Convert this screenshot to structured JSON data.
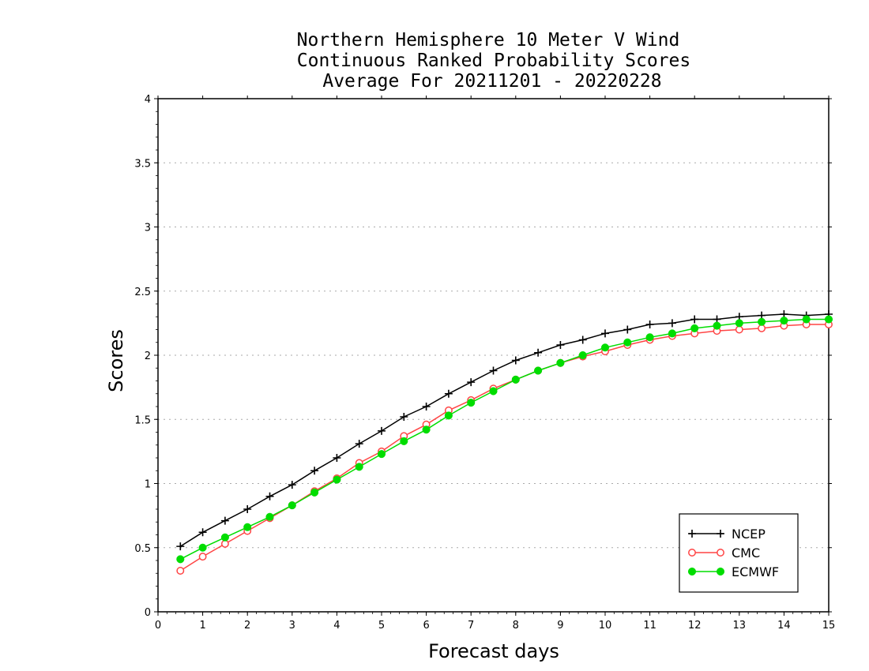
{
  "chart_data": {
    "type": "line",
    "title": [
      "Northern Hemisphere 10 Meter V Wind",
      "Continuous Ranked Probability Scores",
      "Average For 20211201 - 20220228"
    ],
    "xlabel": "Forecast days",
    "ylabel": "Scores",
    "xlim": [
      0,
      15
    ],
    "ylim": [
      0,
      4
    ],
    "xticks": [
      "0",
      "1",
      "2",
      "3",
      "4",
      "5",
      "6",
      "7",
      "8",
      "9",
      "10",
      "11",
      "12",
      "13",
      "14",
      "15"
    ],
    "yticks": [
      "0",
      "0.5",
      "1",
      "1.5",
      "2",
      "2.5",
      "3",
      "3.5",
      "4"
    ],
    "grid": "horizontal-dotted",
    "legend_position": "bottom-right",
    "x": [
      0.5,
      1,
      1.5,
      2,
      2.5,
      3,
      3.5,
      4,
      4.5,
      5,
      5.5,
      6,
      6.5,
      7,
      7.5,
      8,
      8.5,
      9,
      9.5,
      10,
      10.5,
      11,
      11.5,
      12,
      12.5,
      13,
      13.5,
      14,
      14.5,
      15
    ],
    "series": [
      {
        "name": "NCEP",
        "color": "#000000",
        "marker": "plus",
        "values": [
          0.51,
          0.62,
          0.71,
          0.8,
          0.9,
          0.99,
          1.1,
          1.2,
          1.31,
          1.41,
          1.52,
          1.6,
          1.7,
          1.79,
          1.88,
          1.96,
          2.02,
          2.08,
          2.12,
          2.17,
          2.2,
          2.24,
          2.25,
          2.28,
          2.28,
          2.3,
          2.31,
          2.32,
          2.31,
          2.32
        ]
      },
      {
        "name": "CMC",
        "color": "#ff4444",
        "marker": "open-circle",
        "values": [
          0.32,
          0.43,
          0.53,
          0.63,
          0.73,
          0.83,
          0.94,
          1.04,
          1.16,
          1.25,
          1.37,
          1.46,
          1.57,
          1.65,
          1.74,
          1.81,
          1.88,
          1.94,
          1.99,
          2.03,
          2.08,
          2.12,
          2.15,
          2.17,
          2.19,
          2.2,
          2.21,
          2.23,
          2.24,
          2.24
        ]
      },
      {
        "name": "ECMWF",
        "color": "#00dd00",
        "marker": "filled-circle",
        "values": [
          0.41,
          0.5,
          0.58,
          0.66,
          0.74,
          0.83,
          0.93,
          1.03,
          1.13,
          1.23,
          1.33,
          1.42,
          1.53,
          1.63,
          1.72,
          1.81,
          1.88,
          1.94,
          2.0,
          2.06,
          2.1,
          2.14,
          2.17,
          2.21,
          2.23,
          2.25,
          2.26,
          2.27,
          2.28,
          2.28
        ]
      }
    ]
  }
}
